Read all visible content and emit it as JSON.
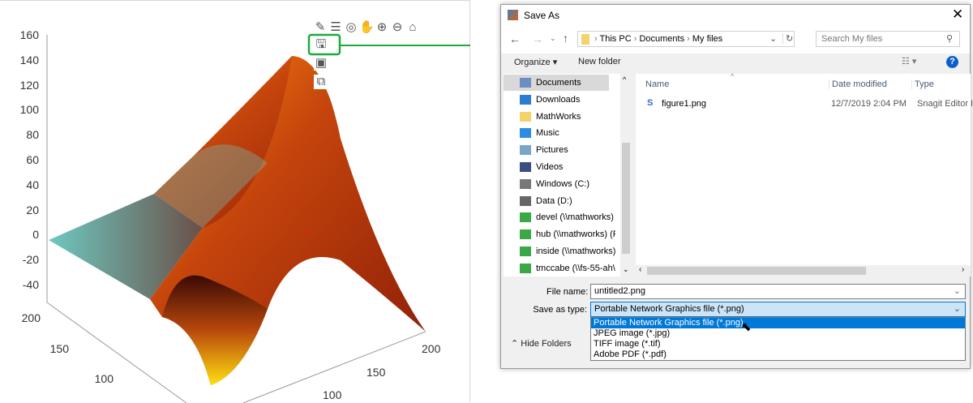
{
  "figure": {
    "z_ticks": [
      "160",
      "140",
      "120",
      "100",
      "80",
      "60",
      "40",
      "20",
      "0",
      "-20",
      "-40"
    ],
    "y_ticks": [
      "200",
      "150",
      "100"
    ],
    "x_ticks": [
      "100",
      "150",
      "200"
    ],
    "toolbar": [
      {
        "name": "brush-icon",
        "glyph": "✎"
      },
      {
        "name": "legend-icon",
        "glyph": "☰"
      },
      {
        "name": "rotate-3d-icon",
        "glyph": "◎"
      },
      {
        "name": "pan-icon",
        "glyph": "✋"
      },
      {
        "name": "zoom-in-icon",
        "glyph": "⊕"
      },
      {
        "name": "zoom-out-icon",
        "glyph": "⊖"
      },
      {
        "name": "home-icon",
        "glyph": "⌂"
      }
    ],
    "export_menu": [
      {
        "name": "save-icon",
        "glyph": "🖫"
      },
      {
        "name": "copy-image-icon",
        "glyph": "▣"
      },
      {
        "name": "copy-vector-icon",
        "glyph": "⧉"
      }
    ],
    "highlight_color": "#1aaa3a"
  },
  "dialog": {
    "title": "Save As",
    "breadcrumb": [
      "This PC",
      "Documents",
      "My files"
    ],
    "search_placeholder": "Search My files",
    "organize": "Organize ▾",
    "new_folder": "New folder",
    "nav": [
      {
        "label": "Documents",
        "icon": "documents-icon",
        "color": "#6a8fc0"
      },
      {
        "label": "Downloads",
        "icon": "download-icon",
        "color": "#2b7cd3"
      },
      {
        "label": "MathWorks",
        "icon": "folder-icon",
        "color": "#f5d36b"
      },
      {
        "label": "Music",
        "icon": "music-icon",
        "color": "#2b8ce0"
      },
      {
        "label": "Pictures",
        "icon": "pictures-icon",
        "color": "#7aa6c8"
      },
      {
        "label": "Videos",
        "icon": "videos-icon",
        "color": "#3a4f80"
      },
      {
        "label": "Windows (C:)",
        "icon": "drive-icon",
        "color": "#777"
      },
      {
        "label": "Data (D:)",
        "icon": "drive-icon",
        "color": "#666"
      },
      {
        "label": "devel (\\\\mathworks) (",
        "icon": "network-drive-icon",
        "color": "#3aa845"
      },
      {
        "label": "hub (\\\\mathworks) (F",
        "icon": "network-drive-icon",
        "color": "#3aa845"
      },
      {
        "label": "inside (\\\\mathworks)",
        "icon": "network-drive-icon",
        "color": "#3aa845"
      },
      {
        "label": "tmccabe (\\\\fs-55-ah\\",
        "icon": "network-drive-icon",
        "color": "#3aa845"
      }
    ],
    "columns": [
      "Name",
      "Date modified",
      "Type"
    ],
    "files": [
      {
        "name": "figure1.png",
        "date": "12/7/2019 2:04 PM",
        "type": "Snagit Editor In"
      }
    ],
    "file_name_label": "File name:",
    "file_name": "untitled2.png",
    "type_label": "Save as type:",
    "type_value": "Portable Network Graphics file (*.png)",
    "type_options": [
      "Portable Network Graphics file (*.png)",
      "JPEG image (*.jpg)",
      "TIFF image (*.tif)",
      "Adobe PDF (*.pdf)"
    ],
    "hide_folders": "Hide Folders",
    "accent": "#0078d7"
  }
}
